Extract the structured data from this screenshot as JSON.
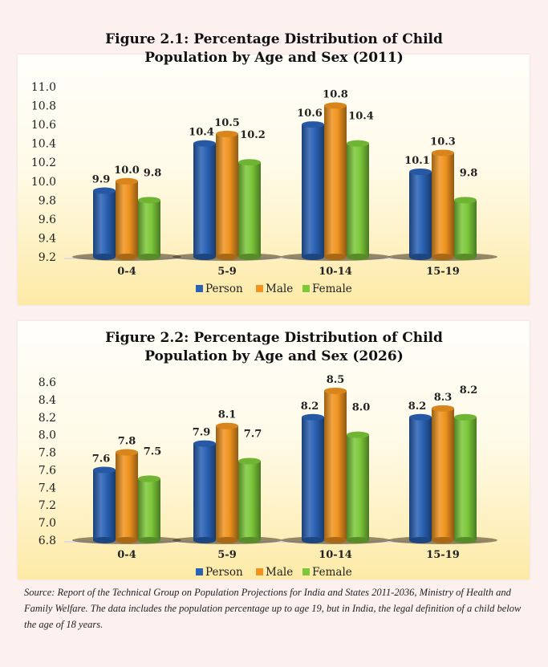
{
  "chart_data": [
    {
      "type": "bar",
      "title": "Figure 2.1: Percentage Distribution of Child Population by Age and Sex (2011)",
      "title_lines": [
        "Figure 2.1: Percentage Distribution of Child",
        "Population by Age and Sex (2011)"
      ],
      "categories": [
        "0-4",
        "5-9",
        "10-14",
        "15-19"
      ],
      "series": [
        {
          "name": "Person",
          "color": "#2a62b5",
          "values": [
            9.9,
            10.4,
            10.6,
            10.1
          ]
        },
        {
          "name": "Male",
          "color": "#f0941f",
          "values": [
            10.0,
            10.5,
            10.8,
            10.3
          ]
        },
        {
          "name": "Female",
          "color": "#7cc83a",
          "values": [
            9.8,
            10.2,
            10.4,
            9.8
          ]
        }
      ],
      "ylim": [
        9.2,
        11.0
      ],
      "yticks": [
        "9.2",
        "9.4",
        "9.6",
        "9.8",
        "10.0",
        "10.2",
        "10.4",
        "10.6",
        "10.8",
        "11.0"
      ],
      "xlabel": "",
      "ylabel": "",
      "legend": "bottom",
      "grid": false
    },
    {
      "type": "bar",
      "title": "Figure 2.2: Percentage Distribution of Child Population by Age and Sex (2026)",
      "title_lines": [
        "Figure 2.2: Percentage Distribution of Child",
        "Population by Age and Sex (2026)"
      ],
      "categories": [
        "0-4",
        "5-9",
        "10-14",
        "15-19"
      ],
      "series": [
        {
          "name": "Person",
          "color": "#2a62b5",
          "values": [
            7.6,
            7.9,
            8.2,
            8.2
          ]
        },
        {
          "name": "Male",
          "color": "#f0941f",
          "values": [
            7.8,
            8.1,
            8.5,
            8.3
          ]
        },
        {
          "name": "Female",
          "color": "#7cc83a",
          "values": [
            7.5,
            7.7,
            8.0,
            8.2
          ]
        }
      ],
      "ylim": [
        6.8,
        8.6
      ],
      "yticks": [
        "6.8",
        "7.0",
        "7.2",
        "7.4",
        "7.6",
        "7.8",
        "8.0",
        "8.2",
        "8.4",
        "8.6"
      ],
      "xlabel": "",
      "ylabel": "",
      "legend": "bottom",
      "grid": false
    }
  ],
  "source": "Source: Report of the Technical Group on Population Projections for India and States 2011-2036, Ministry of Health and Family Welfare. The data includes the population percentage up to age 19, but in India, the legal definition of a child below the age of 18 years."
}
